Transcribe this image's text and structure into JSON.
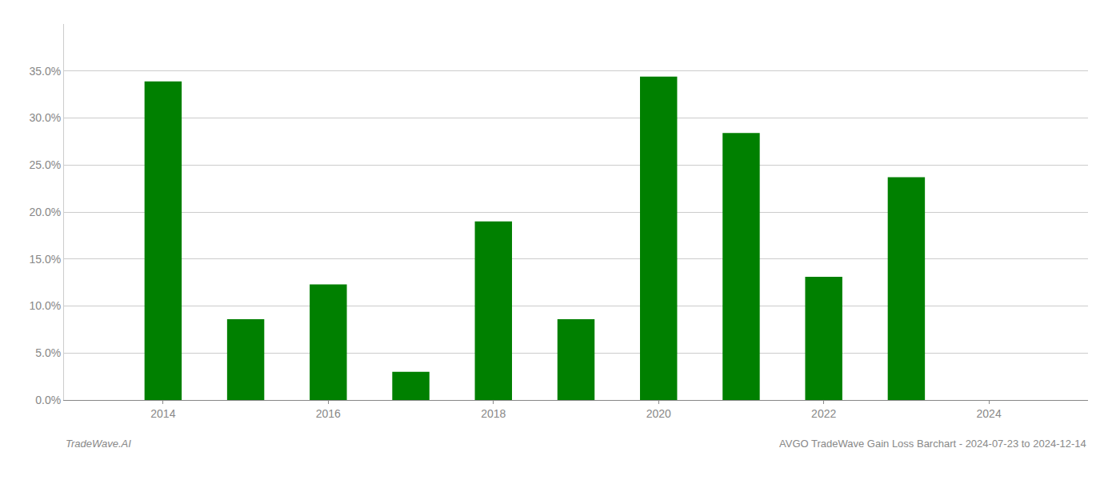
{
  "chart_data": {
    "type": "bar",
    "title": "AVGO TradeWave Gain Loss Barchart - 2024-07-23 to 2024-12-14",
    "annotations": [
      "TradeWave.AI"
    ],
    "x": [
      2014,
      2015,
      2016,
      2017,
      2018,
      2019,
      2020,
      2021,
      2022,
      2023
    ],
    "values": [
      0.339,
      0.086,
      0.123,
      0.03,
      0.19,
      0.086,
      0.344,
      0.284,
      0.131,
      0.237
    ],
    "color": "#008000",
    "xlim": [
      2012.8,
      2025.2
    ],
    "xticks": [
      2014,
      2016,
      2018,
      2020,
      2022,
      2024
    ],
    "ylim": [
      0.0,
      0.4
    ],
    "yticks": [
      {
        "value": 0.0,
        "label": "0.0%"
      },
      {
        "value": 0.05,
        "label": "5.0%"
      },
      {
        "value": 0.1,
        "label": "10.0%"
      },
      {
        "value": 0.15,
        "label": "15.0%"
      },
      {
        "value": 0.2,
        "label": "20.0%"
      },
      {
        "value": 0.25,
        "label": "25.0%"
      },
      {
        "value": 0.3,
        "label": "30.0%"
      },
      {
        "value": 0.35,
        "label": "35.0%"
      }
    ],
    "grid": true
  }
}
